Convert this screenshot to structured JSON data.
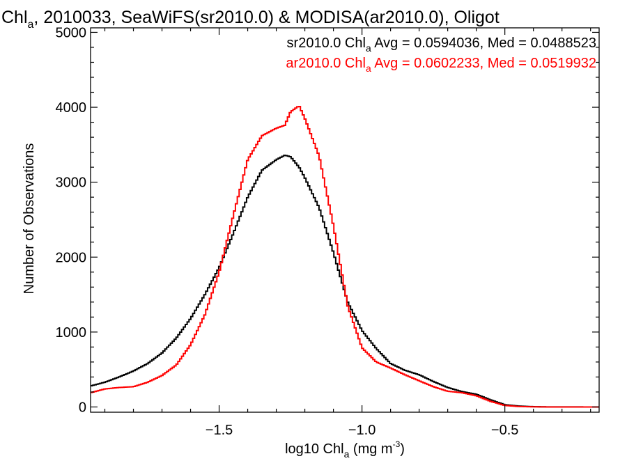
{
  "chart_data": {
    "type": "line",
    "title": {
      "prefix": "Chl",
      "sub": "a",
      "suffix": ", 2010033, SeaWiFS(sr2010.0) & MODISA(ar2010.0), Oligot"
    },
    "xlabel": {
      "prefix": "log10 Chl",
      "sub": "a",
      "mid": " (mg m",
      "sup": "-3",
      "suffix": ")"
    },
    "ylabel": "Number of Observations",
    "xlim": [
      -1.95,
      -0.17
    ],
    "ylim": [
      -70,
      5060
    ],
    "xticks": [
      {
        "v": -1.5,
        "label": "−1.5"
      },
      {
        "v": -1.0,
        "label": "−1.0"
      },
      {
        "v": -0.5,
        "label": "−0.5"
      }
    ],
    "yticks": [
      {
        "v": 0,
        "label": "0"
      },
      {
        "v": 1000,
        "label": "1000"
      },
      {
        "v": 2000,
        "label": "2000"
      },
      {
        "v": 3000,
        "label": "3000"
      },
      {
        "v": 4000,
        "label": "4000"
      },
      {
        "v": 5000,
        "label": "5000"
      }
    ],
    "grid": false,
    "legend_position": "top-right",
    "series": [
      {
        "color": "#000000",
        "stat_text": {
          "prefix": "sr2010.0 Chl",
          "sub": "a",
          "suffix": " Avg = 0.0594036, Med = 0.0488523"
        },
        "points": [
          [
            -1.95,
            280
          ],
          [
            -1.9,
            330
          ],
          [
            -1.85,
            400
          ],
          [
            -1.8,
            480
          ],
          [
            -1.75,
            580
          ],
          [
            -1.7,
            720
          ],
          [
            -1.65,
            920
          ],
          [
            -1.6,
            1180
          ],
          [
            -1.55,
            1500
          ],
          [
            -1.5,
            1860
          ],
          [
            -1.45,
            2320
          ],
          [
            -1.4,
            2800
          ],
          [
            -1.35,
            3160
          ],
          [
            -1.3,
            3300
          ],
          [
            -1.27,
            3360
          ],
          [
            -1.25,
            3340
          ],
          [
            -1.22,
            3200
          ],
          [
            -1.2,
            3060
          ],
          [
            -1.15,
            2660
          ],
          [
            -1.1,
            2060
          ],
          [
            -1.05,
            1400
          ],
          [
            -1.0,
            1020
          ],
          [
            -0.95,
            780
          ],
          [
            -0.9,
            580
          ],
          [
            -0.85,
            490
          ],
          [
            -0.8,
            430
          ],
          [
            -0.75,
            340
          ],
          [
            -0.7,
            260
          ],
          [
            -0.65,
            205
          ],
          [
            -0.6,
            170
          ],
          [
            -0.55,
            95
          ],
          [
            -0.5,
            30
          ],
          [
            -0.45,
            12
          ],
          [
            -0.4,
            4
          ],
          [
            -0.35,
            1
          ],
          [
            -0.17,
            0
          ]
        ]
      },
      {
        "color": "#ff0000",
        "stat_text": {
          "prefix": "ar2010.0 Chl",
          "sub": "a",
          "suffix": " Avg = 0.0602233, Med = 0.0519932"
        },
        "points": [
          [
            -1.95,
            190
          ],
          [
            -1.9,
            240
          ],
          [
            -1.85,
            260
          ],
          [
            -1.8,
            270
          ],
          [
            -1.75,
            330
          ],
          [
            -1.7,
            420
          ],
          [
            -1.65,
            560
          ],
          [
            -1.6,
            830
          ],
          [
            -1.55,
            1230
          ],
          [
            -1.5,
            1800
          ],
          [
            -1.45,
            2560
          ],
          [
            -1.4,
            3300
          ],
          [
            -1.35,
            3620
          ],
          [
            -1.3,
            3720
          ],
          [
            -1.27,
            3760
          ],
          [
            -1.25,
            3940
          ],
          [
            -1.22,
            4020
          ],
          [
            -1.2,
            3850
          ],
          [
            -1.15,
            3350
          ],
          [
            -1.1,
            2420
          ],
          [
            -1.05,
            1350
          ],
          [
            -1.0,
            790
          ],
          [
            -0.95,
            600
          ],
          [
            -0.9,
            520
          ],
          [
            -0.85,
            430
          ],
          [
            -0.8,
            350
          ],
          [
            -0.75,
            270
          ],
          [
            -0.7,
            210
          ],
          [
            -0.65,
            190
          ],
          [
            -0.6,
            150
          ],
          [
            -0.55,
            75
          ],
          [
            -0.5,
            20
          ],
          [
            -0.45,
            6
          ],
          [
            -0.4,
            2
          ],
          [
            -0.35,
            0
          ],
          [
            -0.17,
            0
          ]
        ]
      }
    ]
  }
}
